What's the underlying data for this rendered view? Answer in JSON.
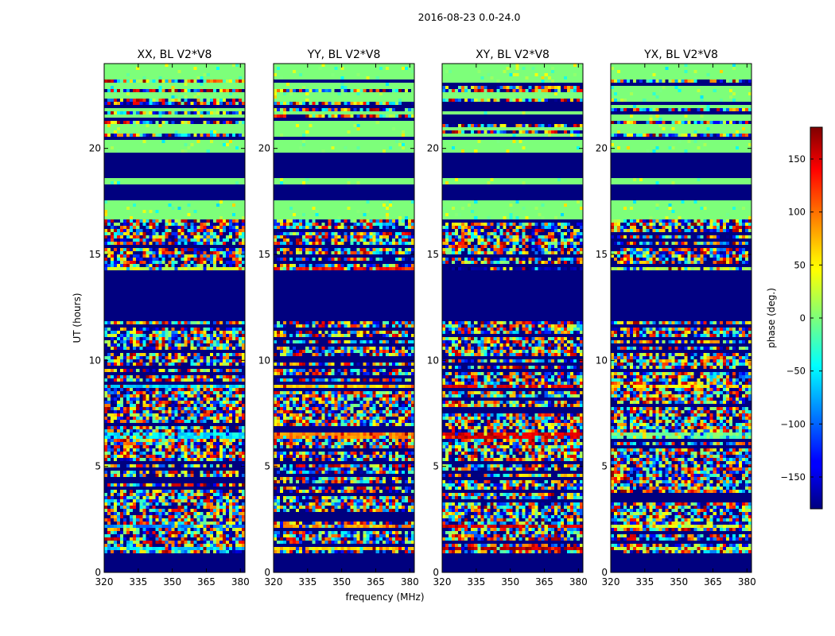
{
  "chart_data": {
    "type": "heatmap",
    "suptitle": "2016-08-23 0.0-24.0",
    "xlabel": "frequency (MHz)",
    "ylabel": "UT (hours)",
    "xlim": [
      320,
      382
    ],
    "ylim": [
      0,
      24
    ],
    "xticks": [
      320,
      335,
      350,
      365,
      380
    ],
    "yticks": [
      0,
      5,
      10,
      15,
      20
    ],
    "panels": [
      {
        "title": "XX, BL V2*V8",
        "pol": "XX"
      },
      {
        "title": "YY, BL V2*V8",
        "pol": "YY"
      },
      {
        "title": "XY, BL V2*V8",
        "pol": "XY"
      },
      {
        "title": "YX, BL V2*V8",
        "pol": "YX"
      }
    ],
    "colorbar": {
      "label": "phase (deg.)",
      "vmin": -180,
      "vmax": 180,
      "ticks": [
        150,
        100,
        50,
        0,
        -50,
        -100,
        -150
      ],
      "colormap": "jet"
    },
    "masked_bands_hours": [
      [
        0.0,
        0.9
      ],
      [
        11.9,
        14.3
      ],
      [
        17.5,
        18.3
      ],
      [
        18.6,
        19.8
      ],
      [
        20.4,
        20.6
      ]
    ],
    "flat_zero_bands_hours": [
      [
        23.3,
        24.0
      ],
      [
        18.3,
        18.6
      ],
      [
        16.6,
        17.5
      ],
      [
        19.8,
        20.4
      ]
    ],
    "strong_lines_hours": [
      {
        "t": 14.35,
        "XX": 30,
        "YY": 130,
        "XY": -170,
        "YX": 20
      },
      {
        "t": 8.75,
        "XX": -60,
        "YY": 60,
        "XY": 150,
        "YX": 50
      },
      {
        "t": 6.45,
        "XX": -50,
        "YY": 90,
        "XY": 150,
        "YX": -10
      },
      {
        "t": 2.2,
        "XX": -90,
        "YY": 80,
        "XY": 150,
        "YX": 30
      },
      {
        "t": 1.1,
        "XX": -60,
        "YY": 60,
        "XY": 160,
        "YX": 30
      }
    ]
  }
}
